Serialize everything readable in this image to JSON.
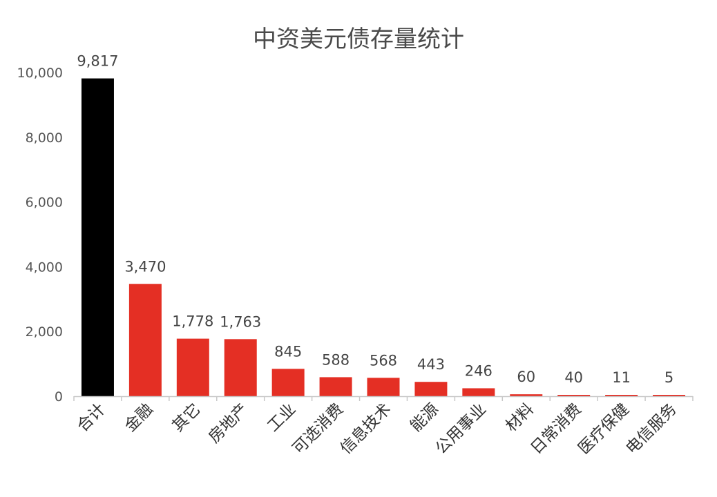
{
  "chart_data": {
    "type": "bar",
    "title": "中资美元债存量统计",
    "xlabel": "",
    "ylabel": "",
    "categories": [
      "合计",
      "金融",
      "其它",
      "房地产",
      "工业",
      "可选消费",
      "信息技术",
      "能源",
      "公用事业",
      "材料",
      "日常消费",
      "医疗保健",
      "电信服务"
    ],
    "values": [
      9817,
      3470,
      1778,
      1763,
      845,
      588,
      568,
      443,
      246,
      60,
      40,
      11,
      5
    ],
    "value_labels": [
      "9,817",
      "3,470",
      "1,778",
      "1,763",
      "845",
      "588",
      "568",
      "443",
      "246",
      "60",
      "40",
      "11",
      "5"
    ],
    "ylim": [
      0,
      10000
    ],
    "yticks": [
      0,
      2000,
      4000,
      6000,
      8000,
      10000
    ],
    "ytick_labels": [
      "0",
      "2,000",
      "4,000",
      "6,000",
      "8,000",
      "10,000"
    ],
    "grid": false,
    "legend": "none",
    "colors": {
      "total": "#000000",
      "bar": "#e42f24",
      "axis": "#c8c8c8"
    }
  }
}
